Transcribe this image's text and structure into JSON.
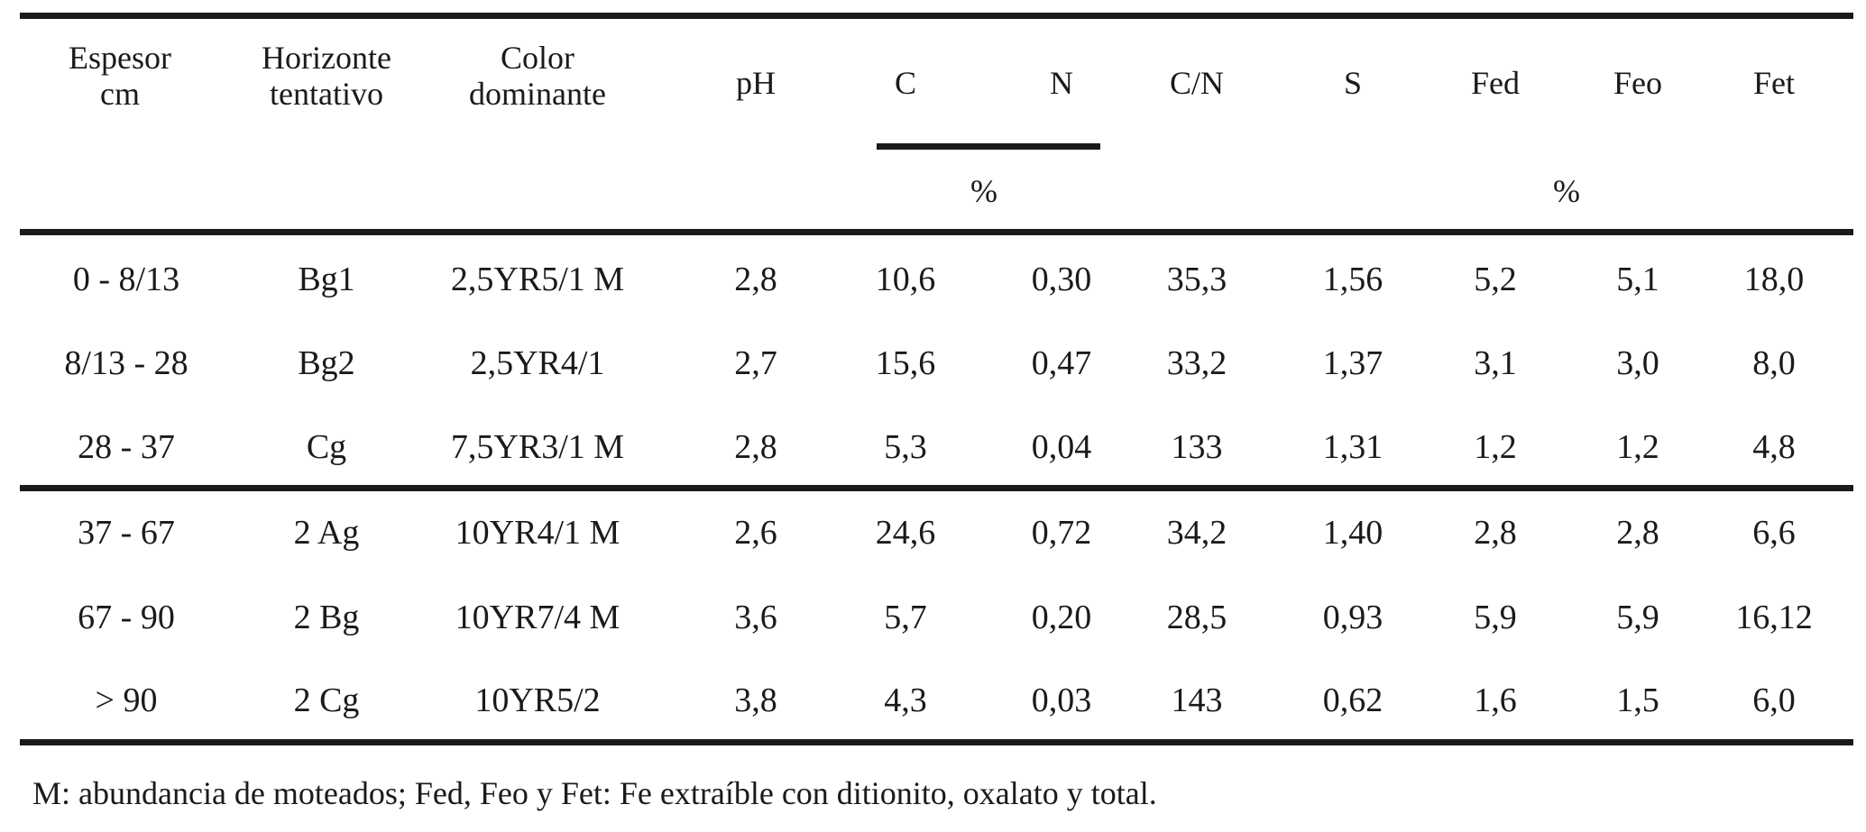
{
  "table": {
    "headers": {
      "espesor": [
        "Espesor",
        "cm"
      ],
      "horizonte": [
        "Horizonte",
        "tentativo"
      ],
      "color": [
        "Color",
        "dominante"
      ],
      "ph": "pH",
      "c": "C",
      "n": "N",
      "cn": "C/N",
      "s": "S",
      "fed": "Fed",
      "feo": "Feo",
      "fet": "Fet"
    },
    "units": {
      "cn_group": "%",
      "fe_group": "%"
    },
    "rows": [
      [
        "0 - 8/13",
        "Bg1",
        "2,5YR5/1 M",
        "2,8",
        "10,6",
        "0,30",
        "35,3",
        "1,56",
        "5,2",
        "5,1",
        "18,0"
      ],
      [
        "8/13 - 28",
        "Bg2",
        "2,5YR4/1",
        "2,7",
        "15,6",
        "0,47",
        "33,2",
        "1,37",
        "3,1",
        "3,0",
        "8,0"
      ],
      [
        "28 - 37",
        "Cg",
        "7,5YR3/1 M",
        "2,8",
        "5,3",
        "0,04",
        "133",
        "1,31",
        "1,2",
        "1,2",
        "4,8"
      ],
      [
        "37 - 67",
        "2 Ag",
        "10YR4/1 M",
        "2,6",
        "24,6",
        "0,72",
        "34,2",
        "1,40",
        "2,8",
        "2,8",
        "6,6"
      ],
      [
        "67 - 90",
        "2 Bg",
        "10YR7/4 M",
        "3,6",
        "5,7",
        "0,20",
        "28,5",
        "0,93",
        "5,9",
        "5,9",
        "16,12"
      ],
      [
        "> 90",
        "2 Cg",
        "10YR5/2",
        "3,8",
        "4,3",
        "0,03",
        "143",
        "0,62",
        "1,6",
        "1,5",
        "6,0"
      ]
    ]
  },
  "footnote": "M: abundancia de moteados; Fed, Feo y Fet: Fe  extraíble con ditionito, oxalato y total."
}
